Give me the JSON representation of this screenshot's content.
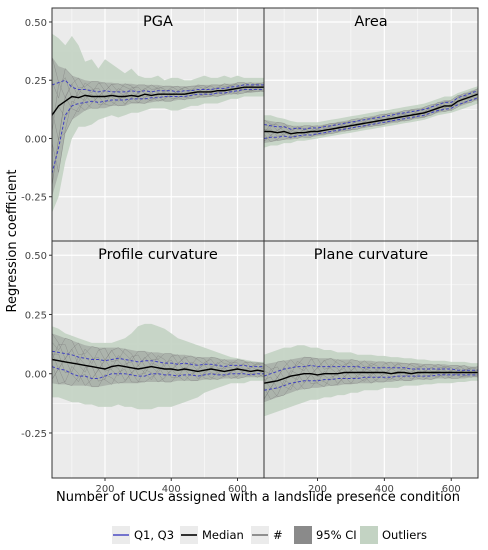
{
  "chart_data": {
    "type": "line",
    "xlabel": "Number of UCUs assigned with a landslide presence condition",
    "ylabel": "Regression coefficient",
    "xlim": [
      40,
      680
    ],
    "ylim": [
      -0.44,
      0.56
    ],
    "x_ticks": [
      200,
      400,
      600
    ],
    "y_ticks": [
      -0.25,
      0.0,
      0.25,
      0.5
    ],
    "y_tick_labels": [
      "-0.25",
      "0.00",
      "0.25",
      "0.50"
    ],
    "grid": true,
    "legend_position": "bottom",
    "legend": [
      "Q1, Q3",
      "Median",
      "#",
      "95% CI",
      "Outliers"
    ],
    "colors": {
      "panel_bg": "#ebebeb",
      "grid": "#ffffff",
      "outliers": "#c3d3c3",
      "ci": "#8c8c8c",
      "sample": "#6e6e6e",
      "median": "#000000",
      "quartiles": "#4040c0"
    },
    "x": [
      40,
      60,
      80,
      100,
      120,
      140,
      160,
      180,
      200,
      220,
      240,
      260,
      280,
      300,
      320,
      340,
      360,
      380,
      400,
      420,
      440,
      460,
      480,
      500,
      520,
      540,
      560,
      580,
      600,
      620,
      640,
      660,
      680
    ],
    "panels": [
      {
        "title": "PGA",
        "median": [
          0.1,
          0.14,
          0.16,
          0.18,
          0.175,
          0.185,
          0.18,
          0.18,
          0.18,
          0.185,
          0.18,
          0.18,
          0.185,
          0.18,
          0.19,
          0.185,
          0.19,
          0.19,
          0.19,
          0.19,
          0.19,
          0.195,
          0.2,
          0.2,
          0.2,
          0.205,
          0.205,
          0.21,
          0.215,
          0.22,
          0.22,
          0.22,
          0.22
        ],
        "q1": [
          -0.15,
          -0.04,
          0.1,
          0.14,
          0.15,
          0.155,
          0.16,
          0.155,
          0.16,
          0.165,
          0.165,
          0.165,
          0.17,
          0.17,
          0.17,
          0.175,
          0.175,
          0.18,
          0.18,
          0.18,
          0.18,
          0.185,
          0.19,
          0.19,
          0.19,
          0.195,
          0.195,
          0.2,
          0.205,
          0.21,
          0.21,
          0.21,
          0.21
        ],
        "q3": [
          0.23,
          0.24,
          0.25,
          0.22,
          0.21,
          0.21,
          0.205,
          0.2,
          0.205,
          0.2,
          0.2,
          0.2,
          0.205,
          0.2,
          0.205,
          0.2,
          0.205,
          0.205,
          0.205,
          0.2,
          0.205,
          0.205,
          0.21,
          0.21,
          0.21,
          0.215,
          0.215,
          0.22,
          0.225,
          0.23,
          0.23,
          0.23,
          0.23
        ],
        "ci_low": [
          -0.25,
          -0.15,
          0.02,
          0.08,
          0.1,
          0.12,
          0.13,
          0.13,
          0.13,
          0.14,
          0.14,
          0.14,
          0.15,
          0.15,
          0.15,
          0.155,
          0.16,
          0.16,
          0.16,
          0.165,
          0.165,
          0.17,
          0.175,
          0.175,
          0.18,
          0.18,
          0.185,
          0.19,
          0.19,
          0.195,
          0.195,
          0.2,
          0.2
        ],
        "ci_high": [
          0.35,
          0.31,
          0.3,
          0.27,
          0.26,
          0.25,
          0.245,
          0.245,
          0.24,
          0.24,
          0.235,
          0.235,
          0.235,
          0.23,
          0.23,
          0.23,
          0.23,
          0.225,
          0.225,
          0.225,
          0.225,
          0.225,
          0.23,
          0.23,
          0.23,
          0.23,
          0.235,
          0.235,
          0.24,
          0.24,
          0.24,
          0.24,
          0.24
        ],
        "out_low": [
          -0.32,
          -0.25,
          -0.1,
          0.0,
          0.05,
          0.05,
          0.06,
          0.08,
          0.09,
          0.1,
          0.09,
          0.1,
          0.11,
          0.11,
          0.12,
          0.13,
          0.13,
          0.13,
          0.12,
          0.12,
          0.13,
          0.14,
          0.14,
          0.15,
          0.15,
          0.15,
          0.16,
          0.17,
          0.17,
          0.18,
          0.18,
          0.18,
          0.18
        ],
        "out_high": [
          0.45,
          0.43,
          0.4,
          0.44,
          0.4,
          0.33,
          0.34,
          0.3,
          0.34,
          0.32,
          0.3,
          0.28,
          0.3,
          0.27,
          0.26,
          0.26,
          0.27,
          0.25,
          0.26,
          0.26,
          0.25,
          0.25,
          0.26,
          0.27,
          0.26,
          0.26,
          0.27,
          0.26,
          0.27,
          0.26,
          0.26,
          0.26,
          0.26
        ]
      },
      {
        "title": "Area",
        "median": [
          0.03,
          0.03,
          0.025,
          0.03,
          0.02,
          0.025,
          0.025,
          0.03,
          0.03,
          0.035,
          0.04,
          0.045,
          0.05,
          0.055,
          0.06,
          0.065,
          0.07,
          0.075,
          0.08,
          0.085,
          0.09,
          0.095,
          0.1,
          0.105,
          0.11,
          0.12,
          0.13,
          0.14,
          0.14,
          0.16,
          0.17,
          0.18,
          0.19
        ],
        "q1": [
          0.0,
          0.005,
          0.005,
          0.01,
          0.005,
          0.01,
          0.015,
          0.015,
          0.02,
          0.025,
          0.03,
          0.035,
          0.04,
          0.045,
          0.05,
          0.055,
          0.06,
          0.065,
          0.07,
          0.075,
          0.08,
          0.085,
          0.09,
          0.095,
          0.1,
          0.11,
          0.12,
          0.125,
          0.13,
          0.145,
          0.155,
          0.165,
          0.175
        ],
        "q3": [
          0.06,
          0.055,
          0.05,
          0.05,
          0.04,
          0.045,
          0.04,
          0.045,
          0.045,
          0.05,
          0.055,
          0.06,
          0.065,
          0.07,
          0.075,
          0.08,
          0.085,
          0.09,
          0.095,
          0.1,
          0.105,
          0.11,
          0.115,
          0.12,
          0.125,
          0.135,
          0.145,
          0.155,
          0.155,
          0.175,
          0.185,
          0.195,
          0.205
        ],
        "ci_low": [
          -0.02,
          -0.015,
          -0.01,
          -0.005,
          -0.005,
          0.0,
          0.005,
          0.005,
          0.01,
          0.015,
          0.02,
          0.025,
          0.03,
          0.035,
          0.04,
          0.045,
          0.05,
          0.055,
          0.06,
          0.065,
          0.07,
          0.075,
          0.08,
          0.085,
          0.09,
          0.1,
          0.11,
          0.115,
          0.12,
          0.135,
          0.145,
          0.155,
          0.165
        ],
        "ci_high": [
          0.08,
          0.075,
          0.07,
          0.065,
          0.055,
          0.055,
          0.055,
          0.055,
          0.055,
          0.06,
          0.065,
          0.07,
          0.075,
          0.08,
          0.085,
          0.09,
          0.095,
          0.1,
          0.105,
          0.11,
          0.115,
          0.12,
          0.125,
          0.13,
          0.135,
          0.145,
          0.155,
          0.165,
          0.165,
          0.185,
          0.195,
          0.205,
          0.215
        ],
        "out_low": [
          -0.04,
          -0.03,
          -0.03,
          -0.02,
          -0.02,
          -0.01,
          -0.01,
          -0.005,
          0.0,
          0.005,
          0.01,
          0.015,
          0.02,
          0.025,
          0.03,
          0.035,
          0.04,
          0.045,
          0.05,
          0.055,
          0.06,
          0.065,
          0.07,
          0.075,
          0.08,
          0.09,
          0.1,
          0.105,
          0.11,
          0.12,
          0.13,
          0.14,
          0.15
        ],
        "out_high": [
          0.1,
          0.1,
          0.09,
          0.085,
          0.075,
          0.07,
          0.07,
          0.07,
          0.07,
          0.075,
          0.08,
          0.085,
          0.09,
          0.095,
          0.1,
          0.105,
          0.11,
          0.115,
          0.12,
          0.125,
          0.13,
          0.135,
          0.14,
          0.145,
          0.15,
          0.16,
          0.17,
          0.18,
          0.18,
          0.195,
          0.205,
          0.215,
          0.225
        ]
      },
      {
        "title": "Profile curvature",
        "median": [
          0.06,
          0.055,
          0.05,
          0.045,
          0.04,
          0.035,
          0.03,
          0.025,
          0.02,
          0.03,
          0.035,
          0.03,
          0.025,
          0.02,
          0.025,
          0.03,
          0.025,
          0.02,
          0.02,
          0.015,
          0.02,
          0.015,
          0.01,
          0.015,
          0.02,
          0.015,
          0.01,
          0.015,
          0.02,
          0.015,
          0.01,
          0.015,
          0.01
        ],
        "q1": [
          0.03,
          0.02,
          0.015,
          0.0,
          -0.01,
          -0.01,
          -0.02,
          -0.02,
          -0.01,
          0.0,
          0.0,
          0.0,
          -0.005,
          -0.01,
          -0.01,
          0.0,
          0.0,
          -0.005,
          -0.005,
          -0.01,
          -0.005,
          -0.005,
          -0.01,
          -0.005,
          0.0,
          -0.005,
          -0.005,
          0.0,
          0.0,
          0.0,
          -0.005,
          0.0,
          0.0
        ],
        "q3": [
          0.095,
          0.09,
          0.085,
          0.08,
          0.07,
          0.065,
          0.06,
          0.06,
          0.055,
          0.06,
          0.065,
          0.06,
          0.055,
          0.05,
          0.055,
          0.055,
          0.05,
          0.045,
          0.045,
          0.04,
          0.045,
          0.04,
          0.035,
          0.04,
          0.04,
          0.035,
          0.03,
          0.035,
          0.035,
          0.035,
          0.03,
          0.03,
          0.03
        ],
        "ci_low": [
          -0.04,
          -0.045,
          -0.045,
          -0.05,
          -0.05,
          -0.05,
          -0.055,
          -0.055,
          -0.05,
          -0.045,
          -0.04,
          -0.04,
          -0.04,
          -0.04,
          -0.035,
          -0.035,
          -0.035,
          -0.035,
          -0.035,
          -0.03,
          -0.03,
          -0.03,
          -0.03,
          -0.025,
          -0.025,
          -0.025,
          -0.02,
          -0.02,
          -0.02,
          -0.015,
          -0.015,
          -0.015,
          -0.015
        ],
        "ci_high": [
          0.17,
          0.16,
          0.15,
          0.14,
          0.13,
          0.12,
          0.115,
          0.11,
          0.11,
          0.11,
          0.11,
          0.105,
          0.1,
          0.095,
          0.095,
          0.09,
          0.09,
          0.085,
          0.085,
          0.08,
          0.08,
          0.075,
          0.07,
          0.07,
          0.07,
          0.065,
          0.06,
          0.06,
          0.06,
          0.055,
          0.05,
          0.05,
          0.045
        ],
        "out_low": [
          -0.1,
          -0.1,
          -0.11,
          -0.12,
          -0.12,
          -0.13,
          -0.13,
          -0.14,
          -0.14,
          -0.14,
          -0.13,
          -0.14,
          -0.14,
          -0.15,
          -0.15,
          -0.15,
          -0.14,
          -0.14,
          -0.14,
          -0.13,
          -0.12,
          -0.11,
          -0.1,
          -0.08,
          -0.07,
          -0.06,
          -0.05,
          -0.04,
          -0.04,
          -0.04,
          -0.03,
          -0.03,
          -0.03
        ],
        "out_high": [
          0.2,
          0.19,
          0.17,
          0.16,
          0.15,
          0.14,
          0.13,
          0.13,
          0.13,
          0.13,
          0.14,
          0.15,
          0.17,
          0.2,
          0.21,
          0.21,
          0.2,
          0.19,
          0.17,
          0.15,
          0.14,
          0.13,
          0.12,
          0.11,
          0.1,
          0.09,
          0.08,
          0.07,
          0.065,
          0.06,
          0.055,
          0.05,
          0.05
        ]
      },
      {
        "title": "Plane curvature",
        "median": [
          -0.04,
          -0.035,
          -0.03,
          -0.02,
          -0.01,
          -0.005,
          0.0,
          0.0,
          -0.005,
          0.0,
          0.0,
          0.0,
          0.005,
          0.005,
          0.005,
          0.005,
          0.005,
          0.005,
          0.005,
          0.0,
          0.005,
          0.005,
          0.0,
          0.005,
          0.005,
          0.005,
          0.005,
          0.005,
          0.005,
          0.005,
          0.005,
          0.005,
          0.005
        ],
        "q1": [
          -0.07,
          -0.065,
          -0.06,
          -0.05,
          -0.04,
          -0.035,
          -0.03,
          -0.03,
          -0.03,
          -0.025,
          -0.025,
          -0.02,
          -0.02,
          -0.02,
          -0.02,
          -0.015,
          -0.015,
          -0.015,
          -0.015,
          -0.015,
          -0.01,
          -0.01,
          -0.01,
          -0.01,
          -0.01,
          -0.01,
          -0.005,
          -0.005,
          -0.005,
          -0.005,
          -0.005,
          -0.005,
          -0.005
        ],
        "q3": [
          -0.01,
          0.0,
          0.01,
          0.02,
          0.025,
          0.03,
          0.03,
          0.035,
          0.03,
          0.03,
          0.03,
          0.03,
          0.03,
          0.03,
          0.03,
          0.025,
          0.025,
          0.025,
          0.025,
          0.025,
          0.025,
          0.025,
          0.02,
          0.02,
          0.02,
          0.02,
          0.02,
          0.02,
          0.02,
          0.015,
          0.015,
          0.015,
          0.015
        ],
        "ci_low": [
          -0.12,
          -0.11,
          -0.1,
          -0.09,
          -0.08,
          -0.07,
          -0.065,
          -0.06,
          -0.06,
          -0.055,
          -0.05,
          -0.05,
          -0.045,
          -0.045,
          -0.04,
          -0.04,
          -0.04,
          -0.035,
          -0.035,
          -0.035,
          -0.03,
          -0.03,
          -0.03,
          -0.025,
          -0.025,
          -0.025,
          -0.02,
          -0.02,
          -0.02,
          -0.02,
          -0.02,
          -0.015,
          -0.015
        ],
        "ci_high": [
          0.04,
          0.045,
          0.05,
          0.055,
          0.06,
          0.065,
          0.07,
          0.07,
          0.065,
          0.065,
          0.065,
          0.06,
          0.06,
          0.06,
          0.055,
          0.055,
          0.055,
          0.05,
          0.05,
          0.05,
          0.05,
          0.045,
          0.045,
          0.045,
          0.04,
          0.04,
          0.04,
          0.04,
          0.035,
          0.035,
          0.035,
          0.03,
          0.03
        ],
        "out_low": [
          -0.18,
          -0.17,
          -0.16,
          -0.15,
          -0.14,
          -0.13,
          -0.12,
          -0.11,
          -0.11,
          -0.1,
          -0.1,
          -0.09,
          -0.09,
          -0.08,
          -0.08,
          -0.07,
          -0.07,
          -0.07,
          -0.06,
          -0.06,
          -0.06,
          -0.05,
          -0.05,
          -0.05,
          -0.045,
          -0.045,
          -0.04,
          -0.04,
          -0.04,
          -0.035,
          -0.035,
          -0.03,
          -0.03
        ],
        "out_high": [
          0.08,
          0.09,
          0.1,
          0.11,
          0.11,
          0.12,
          0.12,
          0.11,
          0.11,
          0.1,
          0.1,
          0.09,
          0.09,
          0.09,
          0.08,
          0.08,
          0.08,
          0.075,
          0.075,
          0.07,
          0.07,
          0.065,
          0.065,
          0.06,
          0.06,
          0.055,
          0.055,
          0.055,
          0.05,
          0.05,
          0.05,
          0.045,
          0.045
        ]
      }
    ]
  }
}
